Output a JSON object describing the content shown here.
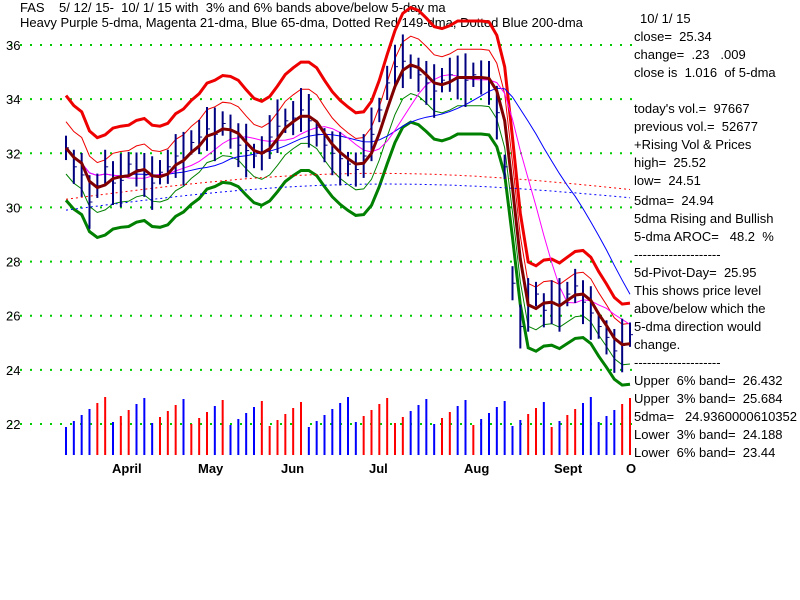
{
  "header": {
    "line1": "FAS    5/ 12/ 15-  10/ 1/ 15 with  3% and 6% bands above/below 5-day ma",
    "line2": "Heavy Purple 5-dma, Magenta 21-dma, Blue 65-dma, Dotted Red 149-dma, Dotted Blue 200-dma"
  },
  "side_text": [
    "10/ 1/ 15",
    "close=  25.34",
    "change=  .23   .009",
    "close is  1.016  of 5-dma",
    "",
    "today's vol.=  97667",
    "previous vol.=  52677",
    "+Rising Vol & Prices",
    "high=  25.52",
    "low=  24.51",
    "",
    "5dma=  24.94",
    "5dma Rising and Bullish",
    "5-dma AROC=   48.2  %",
    "--------------------",
    "5d-Pivot-Day=  25.95",
    "This shows price level",
    "above/below which the",
    "5-dma direction would",
    "change.",
    "--------------------",
    "Upper  6% band=  26.432",
    "Upper  3% band=  25.684",
    "5dma=   24.9360000610352",
    "Lower  3% band=  24.188",
    "Lower  6% band=  23.44"
  ],
  "chart_data": {
    "type": "line",
    "title": "",
    "xlabel": "",
    "ylabel": "",
    "ylim": [
      21,
      37
    ],
    "y_ticks": [
      36,
      34,
      32,
      30,
      28,
      26,
      24,
      22
    ],
    "x_ticks": [
      "April",
      "May",
      "Jun",
      "Jul",
      "Aug",
      "Sept",
      "O"
    ],
    "grid": "dotted green horizontal",
    "colors": {
      "price_bars": "#000080",
      "purple_5dma": "#800000",
      "magenta_21dma": "#ff00ff",
      "blue_65dma": "#0000ff",
      "red_149dma": "#ff0000",
      "blue_200dma": "#0000ff",
      "upper6": "#ee0000",
      "upper3": "#ee0000",
      "lower3": "#008000",
      "lower6": "#008000",
      "grid": "#00cc00",
      "vol_up": "#ff0000",
      "vol_down": "#0000ff"
    },
    "series": [
      {
        "key": "close",
        "values": [
          32.2,
          31.5,
          31.2,
          30.2,
          30.8,
          31.5,
          30.9,
          31.0,
          31.6,
          31.4,
          31.2,
          30.9,
          31.3,
          31.5,
          31.9,
          31.8,
          32.4,
          32.6,
          32.9,
          32.7,
          33.1,
          32.8,
          32.3,
          32.1,
          31.9,
          32.0,
          32.6,
          33.0,
          33.2,
          33.3,
          33.6,
          33.2,
          32.7,
          32.3,
          32.0,
          31.8,
          31.6,
          31.4,
          31.9,
          32.7,
          33.6,
          34.6,
          35.2,
          35.4,
          35.2,
          34.9,
          34.6,
          34.3,
          34.7,
          34.9,
          34.8,
          34.7,
          34.9,
          34.8,
          34.6,
          33.5,
          31.5,
          27.2,
          25.6,
          26.4,
          26.8,
          26.2,
          26.5,
          26.4,
          26.8,
          27.1,
          26.5,
          26.1,
          25.6,
          25.2,
          24.7,
          24.9,
          25.3
        ]
      }
    ]
  }
}
